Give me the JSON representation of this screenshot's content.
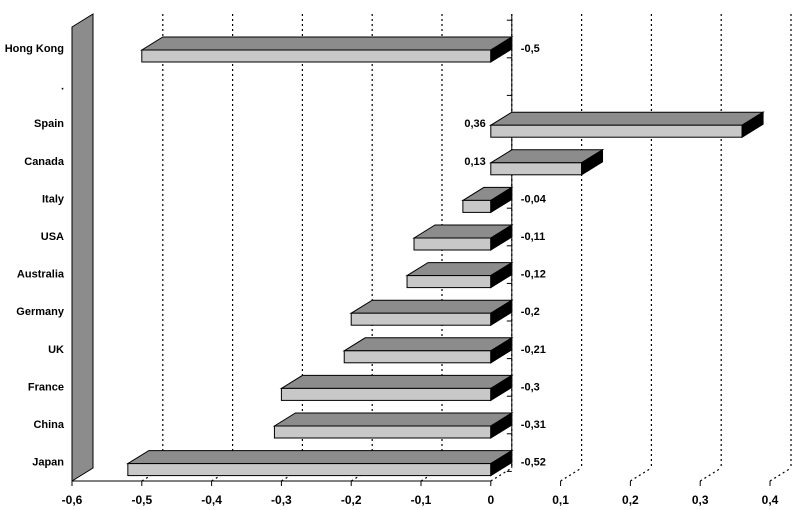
{
  "chart_data": {
    "type": "bar",
    "orientation": "horizontal",
    "style": "3d",
    "categories": [
      "Hong Kong",
      ".",
      "Spain",
      "Canada",
      "Italy",
      "USA",
      "Australia",
      "Germany",
      "UK",
      "France",
      "China",
      "Japan"
    ],
    "values": [
      -0.5,
      null,
      0.36,
      0.13,
      -0.04,
      -0.11,
      -0.12,
      -0.2,
      -0.21,
      -0.3,
      -0.31,
      -0.52
    ],
    "data_labels": [
      "-0,5",
      "",
      "0,36",
      "0,13",
      "-0,04",
      "-0,11",
      "-0,12",
      "-0,2",
      "-0,21",
      "-0,3",
      "-0,31",
      "-0,52"
    ],
    "xlim": [
      -0.6,
      0.4
    ],
    "xticks": [
      -0.6,
      -0.5,
      -0.4,
      -0.3,
      -0.2,
      -0.1,
      0,
      0.1,
      0.2,
      0.3,
      0.4
    ],
    "xtick_labels": [
      "-0,6",
      "-0,5",
      "-0,4",
      "-0,3",
      "-0,2",
      "-0,1",
      "0",
      "0,1",
      "0,2",
      "0,3",
      "0,4"
    ],
    "grid": "vertical-dotted",
    "legend": "none",
    "title": "",
    "xlabel": "",
    "ylabel": "",
    "colors": {
      "bar_top": "#8c8c8c",
      "bar_front": "#c8c8c8",
      "bar_end": "#000000",
      "wall": "#8c8c8c",
      "grid": "#000000"
    }
  }
}
